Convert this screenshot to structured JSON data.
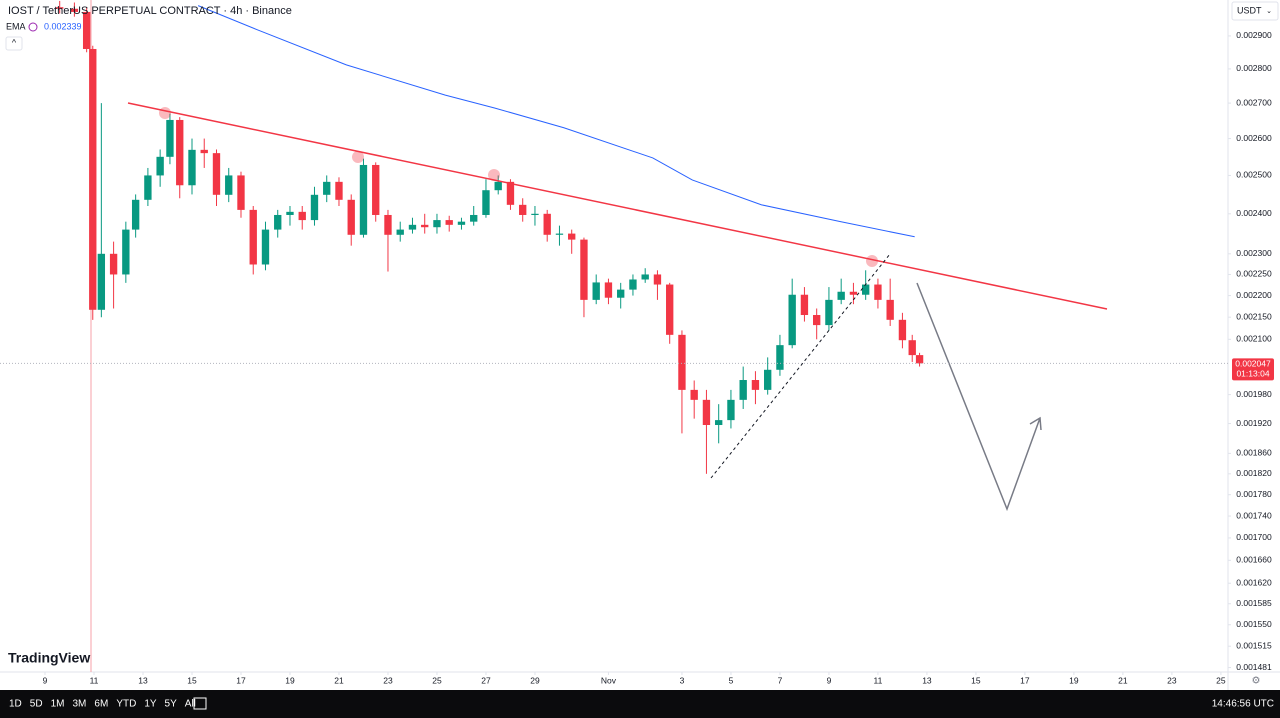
{
  "header": {
    "title": "IOST / TetherUS PERPETUAL CONTRACT · 4h · Binance",
    "indicator": "EMA",
    "indicator_value": "0.002339",
    "currency": "USDT"
  },
  "chart_data": {
    "type": "candlestick",
    "log_scale": true,
    "up_color": "#089981",
    "down_color": "#f23645",
    "x": [
      9.6,
      10.2,
      10.7,
      10.95,
      11.3,
      11.8,
      12.3,
      12.7,
      13.2,
      13.7,
      14.1,
      14.5,
      15.0,
      15.5,
      16.0,
      16.5,
      17.0,
      17.5,
      18.0,
      18.5,
      19.0,
      19.5,
      20.0,
      20.5,
      21.0,
      21.5,
      22.0,
      22.5,
      23.0,
      23.5,
      24.0,
      24.5,
      25.0,
      25.5,
      26.0,
      26.5,
      27.0,
      27.5,
      28.0,
      28.5,
      29.0,
      29.5,
      30.0,
      30.5,
      31.0,
      31.5,
      32.0,
      32.5,
      33.0,
      33.5,
      34.0,
      34.5,
      35.0,
      35.5,
      36.0,
      36.5,
      37.0,
      37.5,
      38.0,
      38.5,
      39.0,
      39.5,
      40.0,
      40.5,
      41.0,
      41.5,
      42.0,
      42.5,
      43.0,
      43.5,
      44.0,
      44.4,
      44.7
    ],
    "open": [
      0.00299,
      0.002985,
      0.002975,
      0.00286,
      0.002167,
      0.0023,
      0.00225,
      0.00236,
      0.002436,
      0.0025,
      0.00255,
      0.002652,
      0.002474,
      0.002569,
      0.00256,
      0.002449,
      0.0025,
      0.00241,
      0.002274,
      0.00236,
      0.002397,
      0.002405,
      0.002384,
      0.002449,
      0.002483,
      0.002436,
      0.002347,
      0.002528,
      0.002397,
      0.002347,
      0.00236,
      0.002372,
      0.002366,
      0.002384,
      0.002372,
      0.00238,
      0.002397,
      0.002461,
      0.002483,
      0.002423,
      0.002397,
      0.0024,
      0.002347,
      0.00235,
      0.002335,
      0.00219,
      0.002231,
      0.002195,
      0.002214,
      0.002238,
      0.00225,
      0.002226,
      0.00211,
      0.00199,
      0.001969,
      0.001917,
      0.001927,
      0.001969,
      0.002011,
      0.00199,
      0.002033,
      0.002087,
      0.002202,
      0.002155,
      0.002132,
      0.00219,
      0.002209,
      0.002202,
      0.002226,
      0.00219,
      0.002144,
      0.002098,
      0.002065
    ],
    "high": [
      0.00301,
      0.003005,
      0.00299,
      0.00287,
      0.0027,
      0.00233,
      0.00238,
      0.00245,
      0.00252,
      0.00257,
      0.00267,
      0.00266,
      0.0026,
      0.0026,
      0.00257,
      0.00252,
      0.00251,
      0.00242,
      0.00238,
      0.00241,
      0.00242,
      0.00242,
      0.00247,
      0.0025,
      0.002495,
      0.00245,
      0.002545,
      0.002535,
      0.00241,
      0.00238,
      0.00239,
      0.0024,
      0.0024,
      0.002395,
      0.00239,
      0.00242,
      0.00249,
      0.0025,
      0.00249,
      0.00244,
      0.00242,
      0.00241,
      0.00237,
      0.00236,
      0.00234,
      0.00225,
      0.00224,
      0.00223,
      0.00225,
      0.002265,
      0.00226,
      0.00223,
      0.00212,
      0.00201,
      0.00199,
      0.00196,
      0.00199,
      0.00204,
      0.00203,
      0.00206,
      0.00211,
      0.00224,
      0.00222,
      0.00217,
      0.00222,
      0.00224,
      0.00223,
      0.00226,
      0.00224,
      0.00224,
      0.00216,
      0.00211,
      0.00207
    ],
    "low": [
      0.00297,
      0.00296,
      0.00285,
      0.002144,
      0.00215,
      0.00217,
      0.00223,
      0.00234,
      0.00242,
      0.00247,
      0.00253,
      0.00244,
      0.00245,
      0.00252,
      0.00242,
      0.00243,
      0.00239,
      0.00225,
      0.00226,
      0.00234,
      0.00237,
      0.00236,
      0.00237,
      0.00243,
      0.00242,
      0.00232,
      0.00234,
      0.00238,
      0.002257,
      0.00233,
      0.00235,
      0.00235,
      0.00235,
      0.002355,
      0.00236,
      0.00237,
      0.00239,
      0.00245,
      0.00241,
      0.00238,
      0.00237,
      0.00233,
      0.00232,
      0.0023,
      0.00215,
      0.00218,
      0.00218,
      0.00217,
      0.0022,
      0.00223,
      0.00219,
      0.00209,
      0.0019,
      0.00193,
      0.00182,
      0.00188,
      0.00191,
      0.00195,
      0.00196,
      0.00198,
      0.00202,
      0.00208,
      0.00214,
      0.0021,
      0.00212,
      0.00218,
      0.00218,
      0.00219,
      0.00217,
      0.00213,
      0.00208,
      0.00205,
      0.00204
    ],
    "close": [
      0.002985,
      0.002975,
      0.00286,
      0.002167,
      0.0023,
      0.00225,
      0.00236,
      0.002436,
      0.0025,
      0.00255,
      0.002652,
      0.002474,
      0.002569,
      0.00256,
      0.002449,
      0.0025,
      0.00241,
      0.002274,
      0.00236,
      0.002397,
      0.002405,
      0.002384,
      0.002449,
      0.002483,
      0.002436,
      0.002347,
      0.002528,
      0.002397,
      0.002347,
      0.00236,
      0.002372,
      0.002366,
      0.002384,
      0.002372,
      0.00238,
      0.002397,
      0.002461,
      0.002483,
      0.002423,
      0.002397,
      0.0024,
      0.002347,
      0.00235,
      0.002335,
      0.00219,
      0.002231,
      0.002195,
      0.002214,
      0.002238,
      0.00225,
      0.002226,
      0.00211,
      0.00199,
      0.001969,
      0.001917,
      0.001927,
      0.001969,
      0.002011,
      0.00199,
      0.002033,
      0.002087,
      0.002202,
      0.002155,
      0.002132,
      0.00219,
      0.002209,
      0.002202,
      0.002226,
      0.00219,
      0.002144,
      0.002098,
      0.002065,
      0.002047
    ],
    "countdown": "01:13:04",
    "ema": {
      "name": "EMA",
      "color": "#2962ff",
      "x": [
        15.25,
        17.67,
        21.3,
        25.34,
        27.35,
        30.18,
        33.81,
        35.42,
        38.25,
        41.47,
        44.5
      ],
      "values": [
        0.002995,
        0.002919,
        0.002812,
        0.002723,
        0.002686,
        0.00263,
        0.002547,
        0.002488,
        0.002423,
        0.00238,
        0.002342
      ]
    },
    "xlim": [
      7.163,
      57.29
    ],
    "ylim": [
      0.001474,
      0.003013
    ],
    "xticks": [
      9,
      11,
      13,
      15,
      17,
      19,
      21,
      23,
      25,
      27,
      29,
      {
        "value": 32,
        "label": "Nov"
      },
      {
        "value": 35,
        "label": "3"
      },
      {
        "value": 37,
        "label": "5"
      },
      {
        "value": 39,
        "label": "7"
      },
      {
        "value": 41,
        "label": "9"
      },
      {
        "value": 43,
        "label": "11"
      },
      {
        "value": 45,
        "label": "13"
      },
      {
        "value": 47,
        "label": "15"
      },
      {
        "value": 49,
        "label": "17"
      },
      {
        "value": 51,
        "label": "19"
      },
      {
        "value": 53,
        "label": "21"
      },
      {
        "value": 55,
        "label": "23"
      },
      {
        "value": 57,
        "label": "25"
      }
    ],
    "yticks": [
      {
        "value": 0.0029,
        "label": "0.002900"
      },
      {
        "value": 0.0028,
        "label": "0.002800"
      },
      {
        "value": 0.0027,
        "label": "0.002700"
      },
      {
        "value": 0.0026,
        "label": "0.002600"
      },
      {
        "value": 0.0025,
        "label": "0.002500"
      },
      {
        "value": 0.0024,
        "label": "0.002400"
      },
      {
        "value": 0.0023,
        "label": "0.002300"
      },
      {
        "value": 0.00225,
        "label": "0.002250"
      },
      {
        "value": 0.0022,
        "label": "0.002200"
      },
      {
        "value": 0.00215,
        "label": "0.002150"
      },
      {
        "value": 0.0021,
        "label": "0.002100"
      },
      {
        "value": 0.00198,
        "label": "0.001980"
      },
      {
        "value": 0.00192,
        "label": "0.001920"
      },
      {
        "value": 0.00186,
        "label": "0.001860"
      },
      {
        "value": 0.00182,
        "label": "0.001820"
      },
      {
        "value": 0.00178,
        "label": "0.001780"
      },
      {
        "value": 0.00174,
        "label": "0.001740"
      },
      {
        "value": 0.0017,
        "label": "0.001700"
      },
      {
        "value": 0.00166,
        "label": "0.001660"
      },
      {
        "value": 0.00162,
        "label": "0.001620"
      },
      {
        "value": 0.001585,
        "label": "0.001585"
      },
      {
        "value": 0.00155,
        "label": "0.001550"
      },
      {
        "value": 0.001515,
        "label": "0.001515"
      },
      {
        "value": 0.001481,
        "label": "0.001481"
      }
    ]
  },
  "logo": "TradingView",
  "toolbar": {
    "ranges": [
      "1D",
      "5D",
      "1M",
      "3M",
      "6M",
      "YTD",
      "1Y",
      "5Y",
      "All"
    ],
    "clock": "14:46:56 UTC"
  }
}
